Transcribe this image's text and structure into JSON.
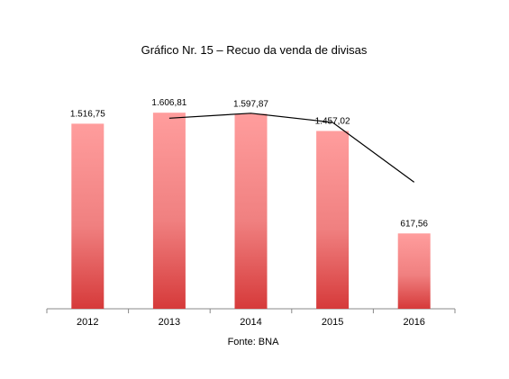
{
  "chart_data": {
    "type": "bar",
    "title": "Gráfico Nr. 15 – Recuo da venda de divisas",
    "source": "Fonte: BNA",
    "categories": [
      "2012",
      "2013",
      "2014",
      "2015",
      "2016"
    ],
    "series": [
      {
        "type": "bar",
        "color": "#e04848",
        "values": [
          1516.75,
          1606.81,
          1597.87,
          1457.02,
          617.56
        ],
        "value_labels": [
          "1.516,75",
          "1.606,81",
          "1.597,87",
          "1.457,02",
          "617,56"
        ]
      },
      {
        "type": "line",
        "color": "#000000",
        "values": [
          null,
          1561.78,
          1602.34,
          1527.45,
          1037.29
        ]
      }
    ],
    "ylim": [
      0,
      1800
    ]
  }
}
